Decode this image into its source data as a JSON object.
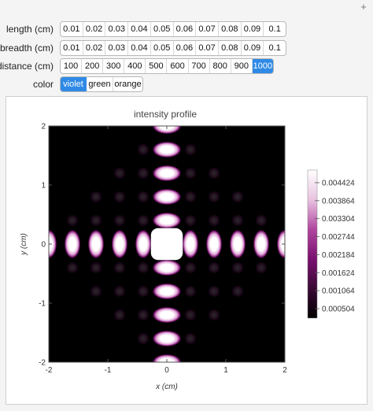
{
  "window": {
    "add_icon": "plus-icon"
  },
  "controls": [
    {
      "label": "length (cm)",
      "options": [
        "0.01",
        "0.02",
        "0.03",
        "0.04",
        "0.05",
        "0.06",
        "0.07",
        "0.08",
        "0.09",
        "0.1"
      ],
      "selected": null
    },
    {
      "label": "breadth (cm)",
      "options": [
        "0.01",
        "0.02",
        "0.03",
        "0.04",
        "0.05",
        "0.06",
        "0.07",
        "0.08",
        "0.09",
        "0.1"
      ],
      "selected": null
    },
    {
      "label": "distance (cm)",
      "options": [
        "100",
        "200",
        "300",
        "400",
        "500",
        "600",
        "700",
        "800",
        "900",
        "1000"
      ],
      "selected": 9
    },
    {
      "label": "color",
      "options": [
        "violet",
        "green",
        "orange"
      ],
      "selected": 0
    }
  ],
  "chart_data": {
    "type": "heatmap",
    "title": "intensity profile",
    "xlabel": "x (cm)",
    "ylabel": "y (cm)",
    "xlim": [
      -2,
      2
    ],
    "ylim": [
      -2,
      2
    ],
    "x_ticks": [
      "-2",
      "-1",
      "0",
      "1",
      "2"
    ],
    "y_ticks": [
      "-2",
      "-1",
      "0",
      "1",
      "2"
    ],
    "fringe_spacing_cm": 0.4,
    "colorbar": {
      "ticks": [
        "0.004424",
        "0.003864",
        "0.003304",
        "0.002744",
        "0.002184",
        "0.001624",
        "0.001064",
        "0.000504"
      ],
      "colors": [
        "#000000",
        "#3a0a34",
        "#7a1070",
        "#b0479f",
        "#e9c3e1",
        "#ffffff"
      ]
    }
  }
}
